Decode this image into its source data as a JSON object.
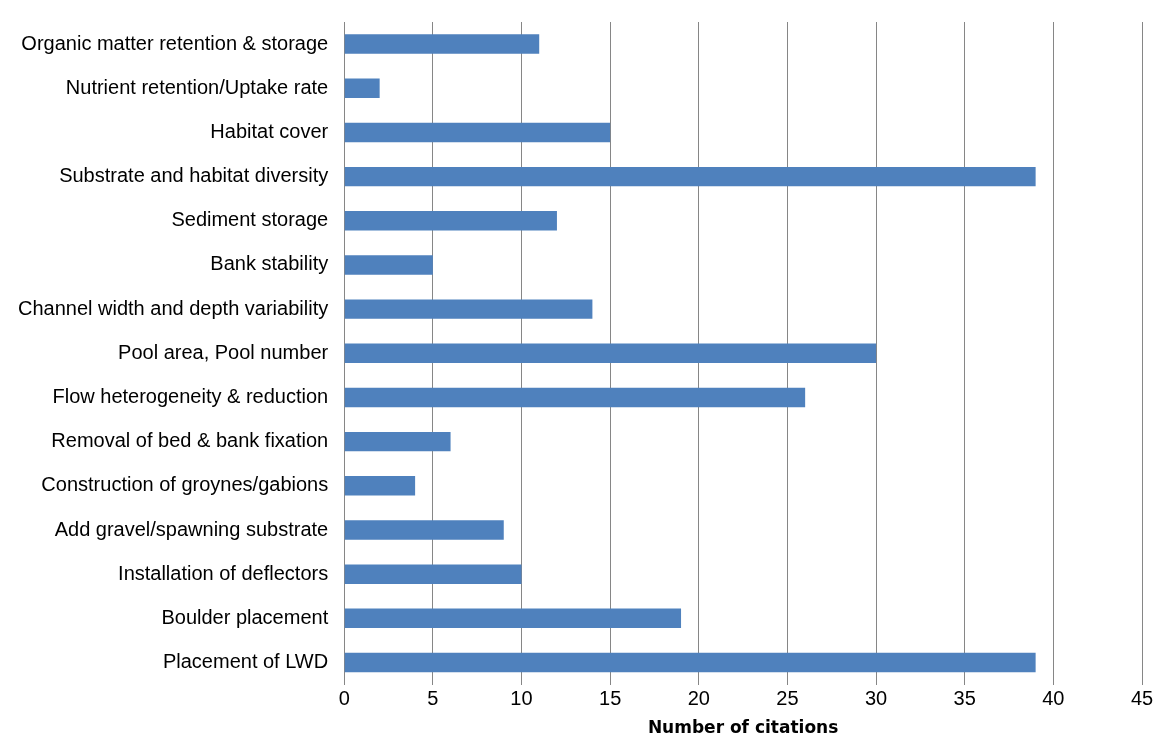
{
  "chart_data": {
    "type": "bar",
    "orientation": "horizontal",
    "xlabel": "Number of citations",
    "categories": [
      "Organic matter retention & storage",
      "Nutrient retention/Uptake rate",
      "Habitat cover",
      "Substrate and habitat diversity",
      "Sediment storage",
      "Bank stability",
      "Channel width and depth variability",
      "Pool area, Pool number",
      "Flow heterogeneity & reduction",
      "Removal of bed & bank fixation",
      "Construction of groynes/gabions",
      "Add gravel/spawning substrate",
      "Installation of deflectors",
      "Boulder placement",
      "Placement of LWD"
    ],
    "values": [
      11,
      2,
      15,
      39,
      12,
      5,
      14,
      30,
      26,
      6,
      4,
      9,
      10,
      19,
      39
    ],
    "color": "#4f81bd",
    "xlim": [
      0,
      45
    ],
    "xticks": [
      0,
      5,
      10,
      15,
      20,
      25,
      30,
      35,
      40,
      45
    ],
    "grid": "x",
    "legend": false
  }
}
